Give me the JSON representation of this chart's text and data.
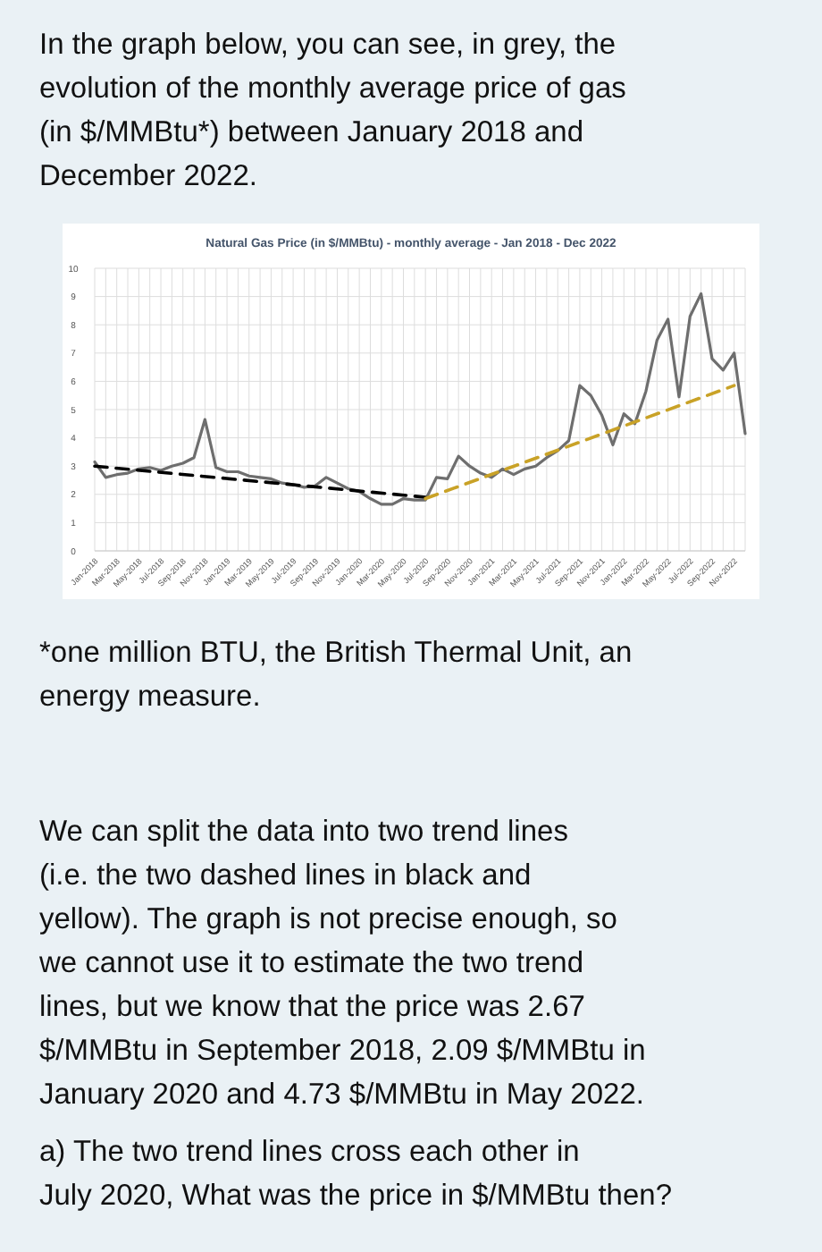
{
  "chart_data": {
    "type": "line",
    "title": "Natural Gas Price (in $/MMBtu) - monthly average - Jan 2018 - Dec 2022",
    "categories": [
      "Jan-2018",
      null,
      "Mar-2018",
      null,
      "May-2018",
      null,
      "Jul-2018",
      null,
      "Sep-2018",
      null,
      "Nov-2018",
      null,
      "Jan-2019",
      null,
      "Mar-2019",
      null,
      "May-2019",
      null,
      "Jul-2019",
      null,
      "Sep-2019",
      null,
      "Nov-2019",
      null,
      "Jan-2020",
      null,
      "Mar-2020",
      null,
      "May-2020",
      null,
      "Jul-2020",
      null,
      "Sep-2020",
      null,
      "Nov-2020",
      null,
      "Jan-2021",
      null,
      "Mar-2021",
      null,
      "May-2021",
      null,
      "Jul-2021",
      null,
      "Sep-2021",
      null,
      "Nov-2021",
      null,
      "Jan-2022",
      null,
      "Mar-2022",
      null,
      "May-2022",
      null,
      "Jul-2022",
      null,
      "Sep-2022",
      null,
      "Nov-2022",
      null
    ],
    "series": [
      {
        "color": "#6e6e6e",
        "values": [
          3.15,
          2.6,
          2.7,
          2.75,
          2.9,
          2.95,
          2.85,
          3.0,
          3.1,
          3.3,
          4.65,
          2.95,
          2.8,
          2.8,
          2.65,
          2.6,
          2.55,
          2.4,
          2.35,
          2.25,
          2.3,
          2.6,
          2.4,
          2.2,
          2.1,
          1.85,
          1.65,
          1.65,
          1.85,
          1.8,
          1.8,
          2.6,
          2.55,
          3.35,
          3.0,
          2.75,
          2.6,
          2.9,
          2.7,
          2.9,
          3.0,
          3.3,
          3.55,
          3.9,
          5.85,
          5.5,
          4.8,
          3.75,
          4.85,
          4.5,
          5.65,
          7.45,
          8.2,
          5.45,
          8.3,
          9.1,
          6.8,
          6.4,
          7.0,
          4.15
        ]
      },
      {
        "type": "line",
        "color": "#000000",
        "line_style": "dashed",
        "x": [
          "Jan-2018",
          "Jul-2020"
        ],
        "values": [
          3.0,
          1.9
        ]
      },
      {
        "type": "line",
        "color": "#c9a227",
        "line_style": "dashed",
        "x": [
          "Jul-2020",
          "Nov-2022"
        ],
        "values": [
          1.85,
          5.85
        ]
      }
    ],
    "ylim": [
      0,
      10
    ],
    "yticks": [
      0,
      1,
      2,
      3,
      4,
      5,
      6,
      7,
      8,
      9,
      10
    ],
    "grid": true,
    "marker": "none",
    "annotations": [
      "In the graph below, you can see, in grey, the evolution of the monthly average price of gas (in $/MMBtu*) between January 2018 and December 2022.",
      "*one million BTU, the British Thermal Unit, an energy measure.",
      "We can split the data into two trend lines (i.e. the two dashed lines in black and yellow). The graph is not precise enough, so we cannot use it to estimate the two trend lines, but we know that the price was 2.67 $/MMBtu in September 2018, 2.09 $/MMBtu in January 2020 and 4.73 $/MMBtu in May 2022.",
      "a) The two trend lines cross each other in July 2020, What was the price in $/MMBtu then?"
    ]
  }
}
